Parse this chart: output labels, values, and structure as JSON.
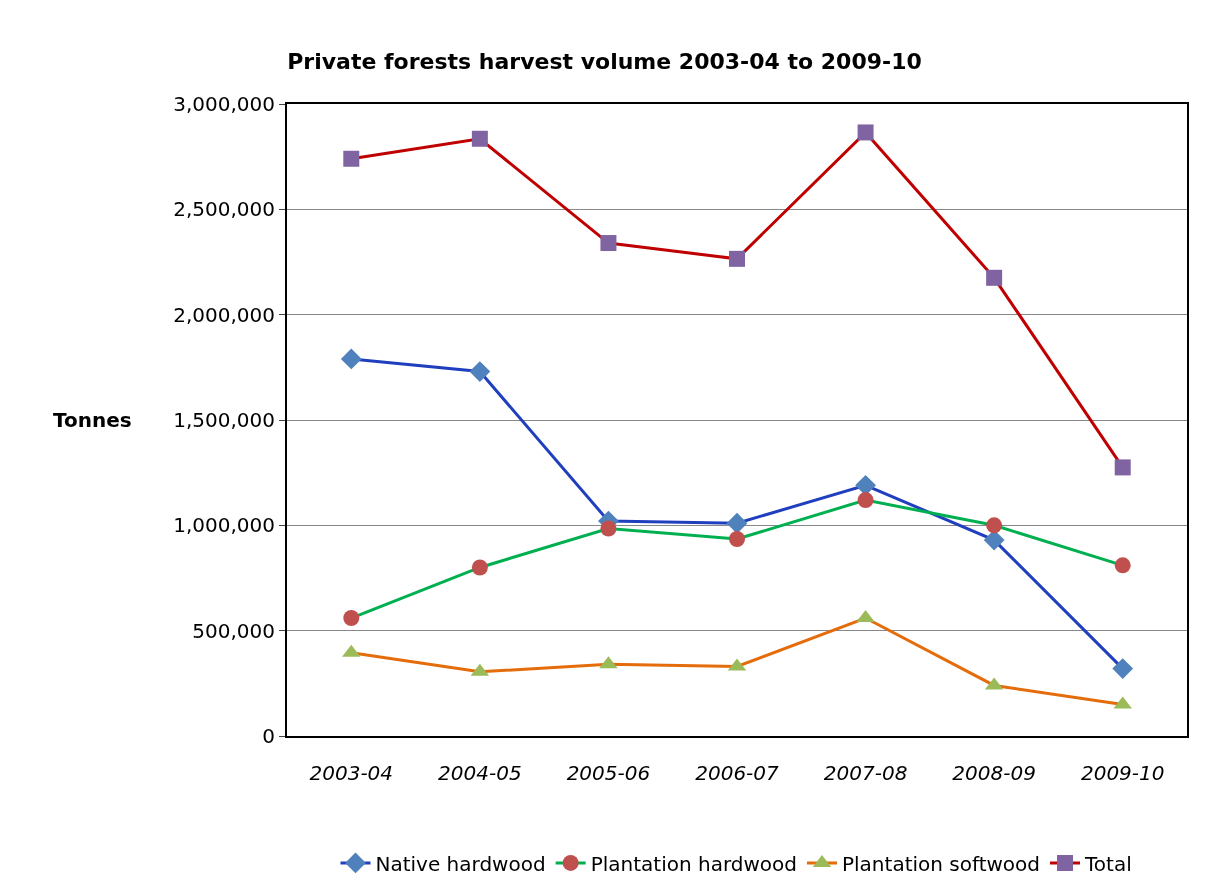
{
  "chart_data": {
    "type": "line",
    "title": "Private forests harvest volume 2003-04 to 2009-10",
    "ylabel": "Tonnes",
    "categories": [
      "2003-04",
      "2004-05",
      "2005-06",
      "2006-07",
      "2007-08",
      "2008-09",
      "2009-10"
    ],
    "series": [
      {
        "name": "Native hardwood",
        "color": "#1f3fbf",
        "colors": [
          "#4f81bd",
          "#4f81bd",
          "#4f81bd",
          "#4f81bd",
          "#4f81bd",
          "#4f81bd",
          "#4f81bd"
        ],
        "marker": "diamond",
        "values": [
          1790000,
          1730000,
          1020000,
          1010000,
          1190000,
          930000,
          320000
        ]
      },
      {
        "name": "Plantation hardwood",
        "color": "#00b050",
        "colors": [
          "#c0504d",
          "#c0504d",
          "#c0504d",
          "#c0504d",
          "#c0504d",
          "#c0504d",
          "#c0504d"
        ],
        "marker": "circle",
        "values": [
          560000,
          800000,
          985000,
          935000,
          1120000,
          1000000,
          810000
        ]
      },
      {
        "name": "Plantation softwood",
        "color": "#e46c0a",
        "colors": [
          "#9bbb59",
          "#9bbb59",
          "#9bbb59",
          "#9bbb59",
          "#9bbb59",
          "#9bbb59",
          "#9bbb59"
        ],
        "marker": "triangle",
        "values": [
          395000,
          305000,
          340000,
          330000,
          560000,
          240000,
          150000
        ]
      },
      {
        "name": "Total",
        "color": "#c00000",
        "colors": [
          "#8064a2",
          "#8064a2",
          "#8064a2",
          "#8064a2",
          "#8064a2",
          "#8064a2",
          "#8064a2"
        ],
        "marker": "square",
        "values": [
          2740000,
          2835000,
          2340000,
          2265000,
          2865000,
          2175000,
          1275000
        ]
      }
    ],
    "ylim": [
      0,
      3000000
    ],
    "yticks": [
      {
        "value": 0,
        "label": "0"
      },
      {
        "value": 500000,
        "label": "500,000"
      },
      {
        "value": 1000000,
        "label": "1,000,000"
      },
      {
        "value": 1500000,
        "label": "1,500,000"
      },
      {
        "value": 2000000,
        "label": "2,000,000"
      },
      {
        "value": 2500000,
        "label": "2,500,000"
      },
      {
        "value": 3000000,
        "label": "3,000,000"
      }
    ],
    "grid": "y",
    "legend": "bottom",
    "line_style": "solid"
  }
}
